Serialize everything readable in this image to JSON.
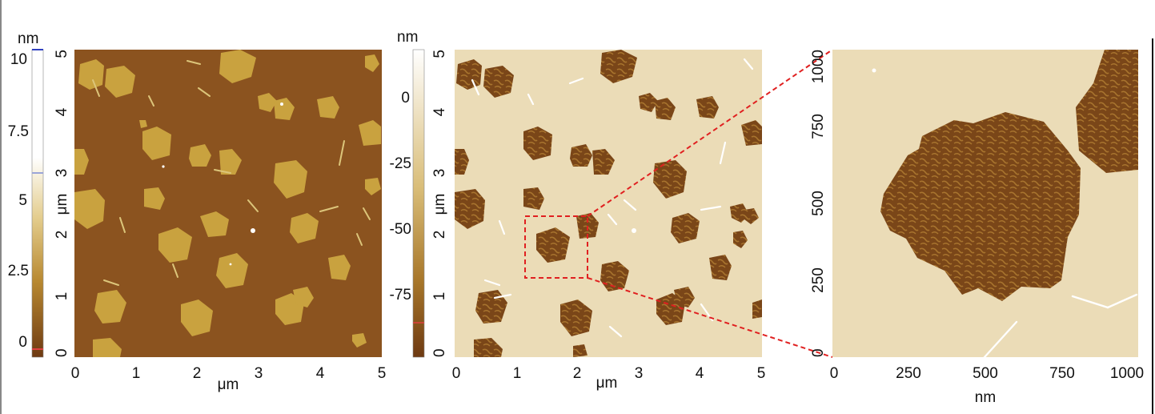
{
  "panels": [
    {
      "id": "height",
      "colorbar": {
        "unit": "nm",
        "ticks": [
          "10",
          "7.5",
          "5",
          "2.5",
          "0"
        ],
        "colors": [
          "#ffffff",
          "#c69a3c",
          "#7a4416"
        ]
      },
      "image": {
        "y_label": "μm",
        "x_label": "μm",
        "y_ticks": [
          "5",
          "4",
          "3",
          "2",
          "1",
          "0"
        ],
        "x_ticks": [
          "0",
          "1",
          "2",
          "3",
          "4",
          "5"
        ],
        "background": "#8b531f",
        "island": "#c8a140"
      }
    },
    {
      "id": "phase",
      "colorbar": {
        "unit": "nm",
        "ticks": [
          "0",
          "-25",
          "-50",
          "-75"
        ],
        "colors": [
          "#ffffff",
          "#c69a3c",
          "#7a4416"
        ]
      },
      "image": {
        "y_label": "μm",
        "x_label": "μm",
        "y_ticks": [
          "5",
          "4",
          "3",
          "2",
          "1",
          "0"
        ],
        "x_ticks": [
          "0",
          "1",
          "2",
          "3",
          "4",
          "5"
        ],
        "background": "#eadcb8",
        "island": "#7d4a1c"
      }
    },
    {
      "id": "zoom",
      "image": {
        "y_ticks": [
          "1000",
          "750",
          "500",
          "250",
          "0"
        ],
        "x_ticks": [
          "0",
          "250",
          "500",
          "750",
          "1000"
        ],
        "x_label": "nm",
        "background": "#eadcb8",
        "island": "#7d4a1c"
      }
    }
  ],
  "zoom_box_color": "#e02020"
}
